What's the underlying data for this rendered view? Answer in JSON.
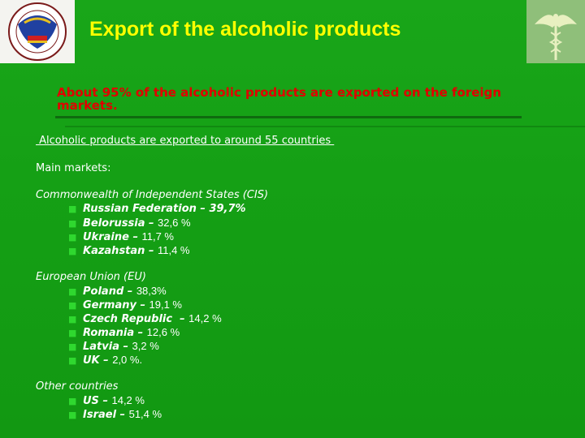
{
  "title": "Export of the alcoholic products",
  "intro": "About 95% of the alcoholic products are exported on the foreign markets.",
  "countries_line": " Alcoholic products are exported to around 55 countries ",
  "main_markets_label": "Main markets:",
  "groups": [
    {
      "title": "Commonwealth of Independent States (CIS)",
      "items": [
        {
          "country": "Russian Federation",
          "sep": " – ",
          "value": "39,7%"
        },
        {
          "country": "Belorussia",
          "sep": " – ",
          "value": "32,6 %"
        },
        {
          "country": "Ukraine",
          "sep": " – ",
          "value": "11,7 %"
        },
        {
          "country": "Kazahstan",
          "sep": " – ",
          "value": "11,4 %"
        }
      ]
    },
    {
      "title": "European Union (EU)",
      "items": [
        {
          "country": "Poland",
          "sep": " – ",
          "value": "38,3%"
        },
        {
          "country": "Germany",
          "sep": " – ",
          "value": "19,1 %"
        },
        {
          "country": "Czech Republic",
          "sep": "  – ",
          "value": "14,2 %"
        },
        {
          "country": "Romania",
          "sep": " – ",
          "value": "12,6 %"
        },
        {
          "country": "Latvia",
          "sep": " – ",
          "value": "3,2 %"
        },
        {
          "country": "UK",
          "sep": " – ",
          "value": "2,0 %."
        }
      ]
    },
    {
      "title": "Other countries",
      "items": [
        {
          "country": "US",
          "sep": " – ",
          "value": "14,2 %"
        },
        {
          "country": "Israel",
          "sep": " – ",
          "value": "51,4 %"
        }
      ]
    }
  ],
  "colors": {
    "background": "#15a015",
    "title": "#ffff00",
    "intro": "#e00000",
    "text": "#ffffff",
    "bullet": "#2fd82f"
  }
}
